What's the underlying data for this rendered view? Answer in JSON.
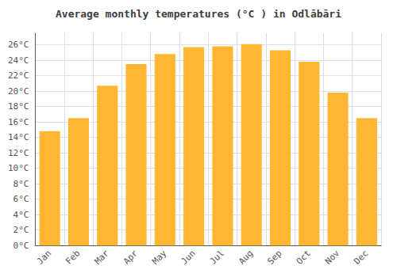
{
  "chart_data": {
    "type": "bar",
    "title": "Average monthly temperatures (°C ) in Odlābāri",
    "categories": [
      "Jan",
      "Feb",
      "Mar",
      "Apr",
      "May",
      "Jun",
      "Jul",
      "Aug",
      "Sep",
      "Oct",
      "Nov",
      "Dec"
    ],
    "values": [
      14.8,
      16.5,
      20.7,
      23.5,
      24.8,
      25.7,
      25.8,
      26.1,
      25.3,
      23.8,
      19.8,
      16.5
    ],
    "color": "#FFB733",
    "ylim": [
      0,
      27.5
    ],
    "yticks": [
      {
        "value": 0,
        "label": "0°C"
      },
      {
        "value": 2,
        "label": "2°C"
      },
      {
        "value": 4,
        "label": "4°C"
      },
      {
        "value": 6,
        "label": "6°C"
      },
      {
        "value": 8,
        "label": "8°C"
      },
      {
        "value": 10,
        "label": "10°C"
      },
      {
        "value": 12,
        "label": "12°C"
      },
      {
        "value": 14,
        "label": "14°C"
      },
      {
        "value": 16,
        "label": "16°C"
      },
      {
        "value": 18,
        "label": "18°C"
      },
      {
        "value": 20,
        "label": "20°C"
      },
      {
        "value": 22,
        "label": "22°C"
      },
      {
        "value": 24,
        "label": "24°C"
      },
      {
        "value": 26,
        "label": "26°C"
      }
    ],
    "grid": true
  }
}
